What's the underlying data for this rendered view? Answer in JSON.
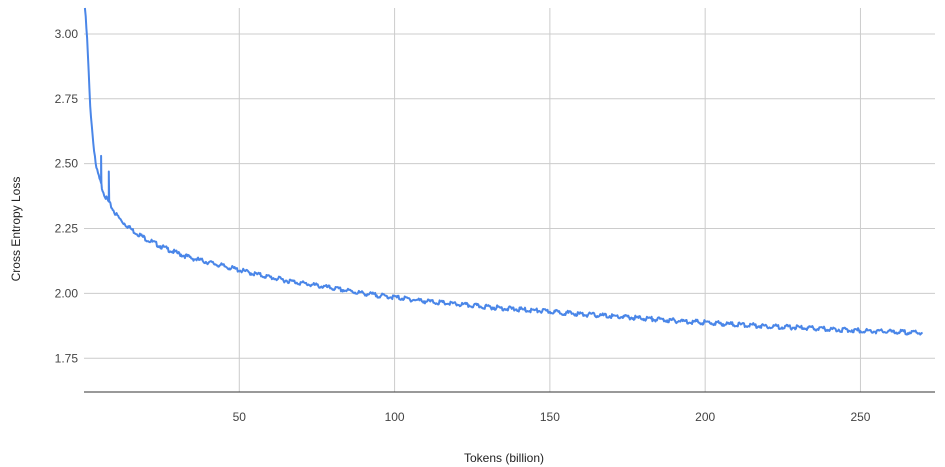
{
  "chart_data": {
    "type": "line",
    "title": "",
    "xlabel": "Tokens (billion)",
    "ylabel": "Cross Entropy Loss",
    "xlim": [
      0,
      274
    ],
    "ylim": [
      1.62,
      3.1
    ],
    "x_ticks": [
      50,
      100,
      150,
      200,
      250
    ],
    "x_tick_labels": [
      "50",
      "100",
      "150",
      "200",
      "250"
    ],
    "y_ticks": [
      1.75,
      2.0,
      2.25,
      2.5,
      2.75,
      3.0
    ],
    "y_tick_labels": [
      "1.75",
      "2.00",
      "2.25",
      "2.50",
      "2.75",
      "3.00"
    ],
    "grid": true,
    "legend": "none",
    "colors": {
      "line": "#4a86e8",
      "grid": "#cccccc",
      "axis": "#333333"
    },
    "series": [
      {
        "x": [
          0.3,
          1,
          2,
          3,
          4,
          5,
          6,
          7,
          8,
          9,
          10,
          12,
          14,
          16,
          18,
          20,
          25,
          30,
          35,
          40,
          45,
          50,
          55,
          60,
          65,
          70,
          75,
          80,
          85,
          90,
          95,
          100,
          110,
          120,
          130,
          140,
          150,
          160,
          170,
          180,
          190,
          200,
          210,
          220,
          230,
          240,
          250,
          260,
          270
        ],
        "values": [
          3.1,
          2.98,
          2.72,
          2.58,
          2.48,
          2.44,
          2.4,
          2.37,
          2.35,
          2.33,
          2.31,
          2.28,
          2.26,
          2.24,
          2.225,
          2.21,
          2.18,
          2.155,
          2.135,
          2.12,
          2.105,
          2.09,
          2.075,
          2.062,
          2.05,
          2.04,
          2.03,
          2.02,
          2.01,
          2.0,
          1.992,
          1.985,
          1.97,
          1.958,
          1.948,
          1.938,
          1.93,
          1.92,
          1.912,
          1.904,
          1.895,
          1.888,
          1.88,
          1.874,
          1.868,
          1.862,
          1.857,
          1.852,
          1.848
        ]
      }
    ],
    "spikes": [
      {
        "x": 5.5,
        "y": 2.53
      },
      {
        "x": 8.0,
        "y": 2.47
      }
    ]
  }
}
